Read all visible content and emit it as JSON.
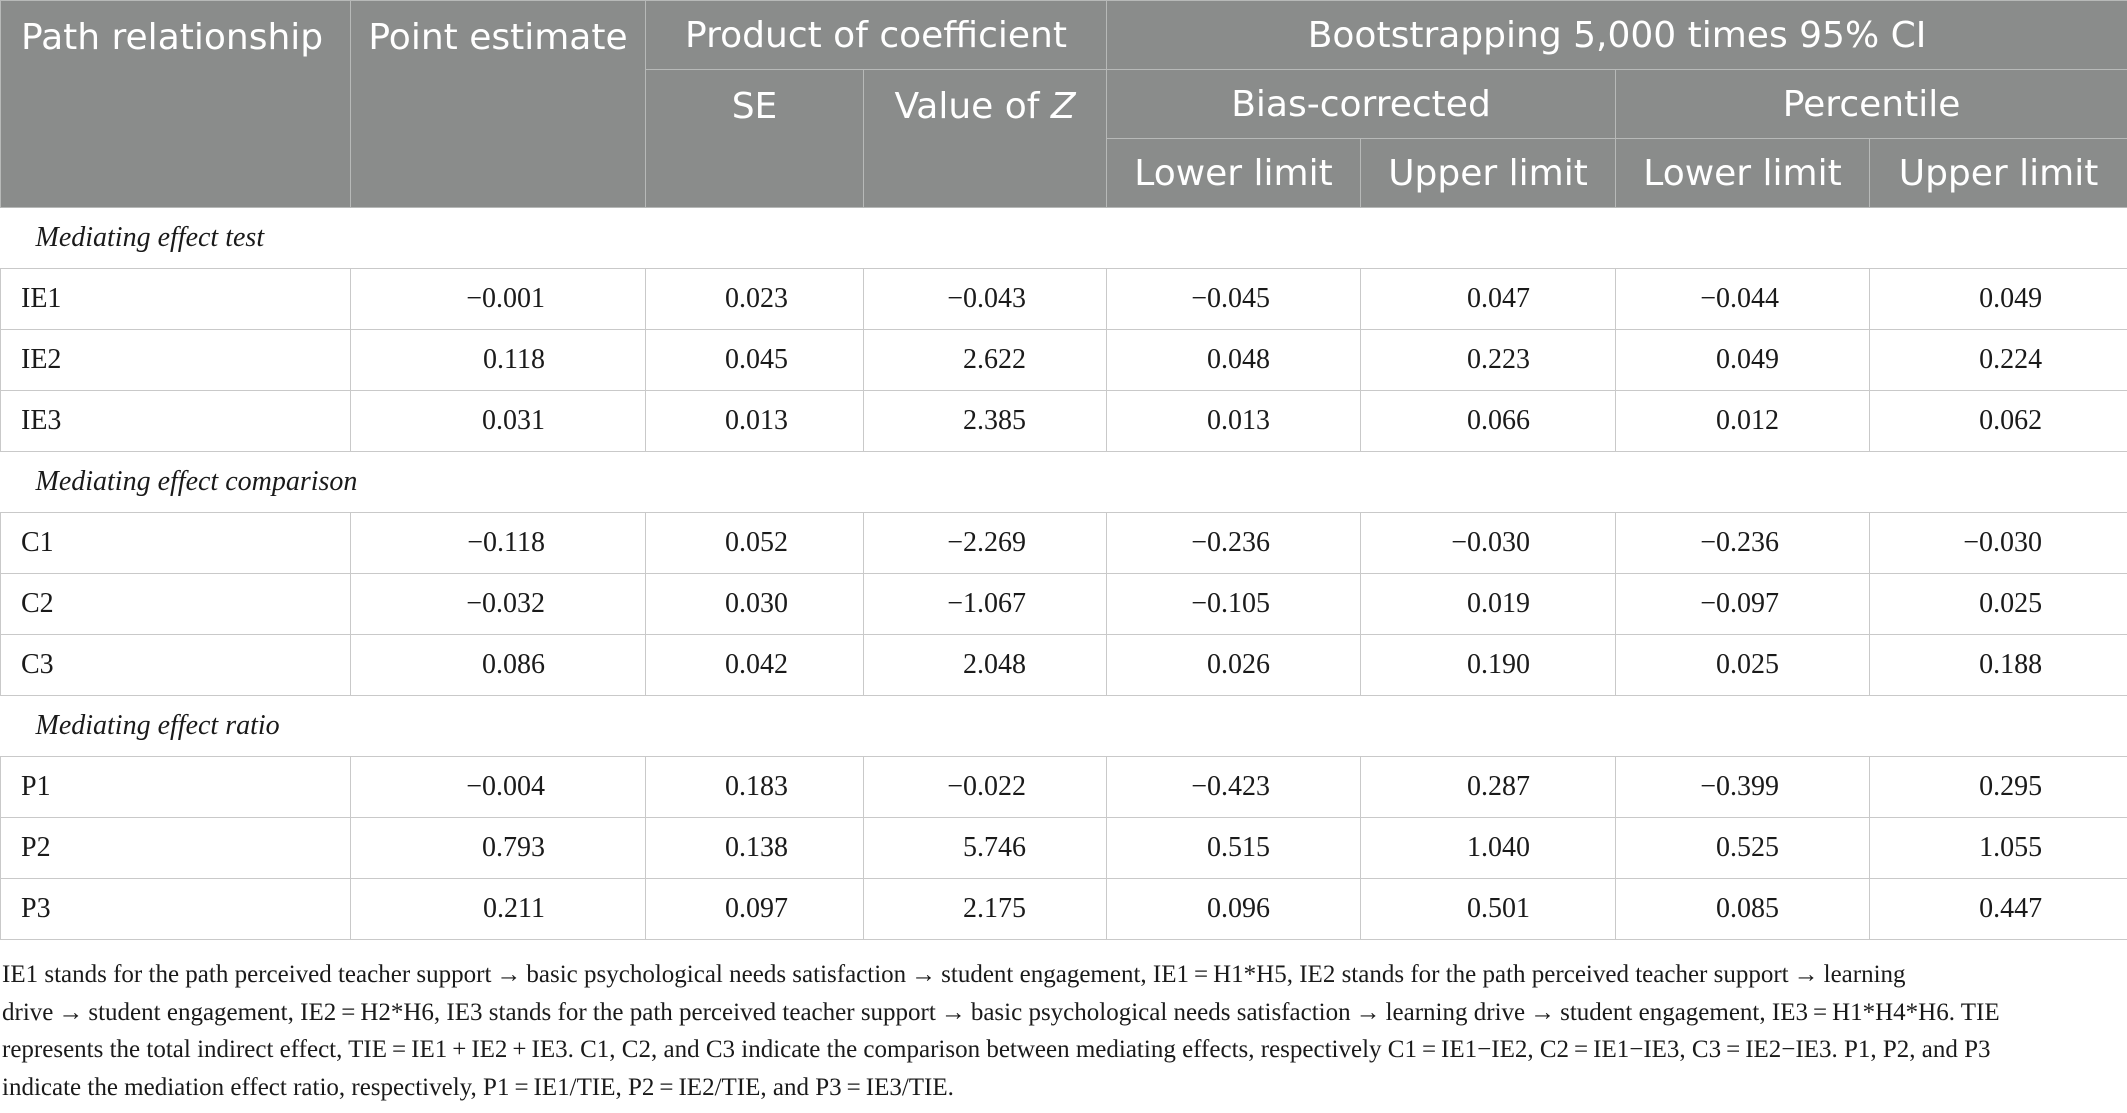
{
  "table": {
    "headers": {
      "path": "Path relationship",
      "point": "Point estimate",
      "product": "Product of coefficient",
      "boot": "Bootstrapping 5,000 times 95% CI",
      "se": "SE",
      "z_prefix": "Value of ",
      "z_var": "Z",
      "bias": "Bias-corrected",
      "percentile": "Percentile",
      "bc_lower": "Lower limit",
      "bc_upper": "Upper limit",
      "pc_lower": "Lower limit",
      "pc_upper": "Upper limit"
    },
    "sections": [
      {
        "title": "Mediating effect test",
        "rows": [
          {
            "label": "IE1",
            "values": [
              "−0.001",
              "0.023",
              "−0.043",
              "−0.045",
              "0.047",
              "−0.044",
              "0.049"
            ]
          },
          {
            "label": "IE2",
            "values": [
              "0.118",
              "0.045",
              "2.622",
              "0.048",
              "0.223",
              "0.049",
              "0.224"
            ]
          },
          {
            "label": "IE3",
            "values": [
              "0.031",
              "0.013",
              "2.385",
              "0.013",
              "0.066",
              "0.012",
              "0.062"
            ]
          }
        ]
      },
      {
        "title": "Mediating effect comparison",
        "rows": [
          {
            "label": "C1",
            "values": [
              "−0.118",
              "0.052",
              "−2.269",
              "−0.236",
              "−0.030",
              "−0.236",
              "−0.030"
            ]
          },
          {
            "label": "C2",
            "values": [
              "−0.032",
              "0.030",
              "−1.067",
              "−0.105",
              "0.019",
              "−0.097",
              "0.025"
            ]
          },
          {
            "label": "C3",
            "values": [
              "0.086",
              "0.042",
              "2.048",
              "0.026",
              "0.190",
              "0.025",
              "0.188"
            ]
          }
        ]
      },
      {
        "title": "Mediating effect ratio",
        "rows": [
          {
            "label": "P1",
            "values": [
              "−0.004",
              "0.183",
              "−0.022",
              "−0.423",
              "0.287",
              "−0.399",
              "0.295"
            ]
          },
          {
            "label": "P2",
            "values": [
              "0.793",
              "0.138",
              "5.746",
              "0.515",
              "1.040",
              "0.525",
              "1.055"
            ]
          },
          {
            "label": "P3",
            "values": [
              "0.211",
              "0.097",
              "2.175",
              "0.096",
              "0.501",
              "0.085",
              "0.447"
            ]
          }
        ]
      }
    ]
  },
  "footnote": {
    "lines": [
      "IE1 stands for the path perceived teacher support → basic psychological needs satisfaction → student engagement, IE1 = H1*H5, IE2 stands for the path perceived teacher support → learning",
      "drive → student engagement, IE2 = H2*H6, IE3 stands for the path perceived teacher support → basic psychological needs satisfaction → learning drive → student engagement, IE3 = H1*H4*H6. TIE",
      "represents the total indirect effect, TIE = IE1 + IE2 + IE3. C1, C2, and C3 indicate the comparison between mediating effects, respectively C1 = IE1−IE2, C2 = IE1−IE3, C3 = IE2−IE3. P1, P2, and P3",
      "indicate the mediation effect ratio, respectively, P1 = IE1/TIE, P2 = IE2/TIE, and P3 = IE3/TIE."
    ]
  }
}
